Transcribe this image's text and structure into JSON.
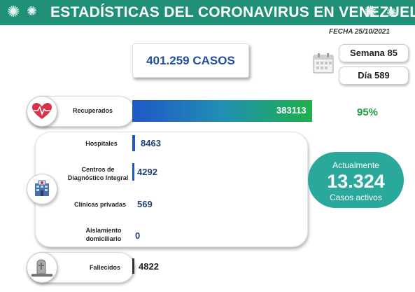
{
  "header": {
    "title": "ESTADÍSTICAS DEL CORONAVIRUS EN VENEZUELA",
    "date": "FECHA 25/10/2021"
  },
  "summary": {
    "cases": "401.259 CASOS",
    "week": "Semana 85",
    "day": "Día 589"
  },
  "recovered": {
    "label": "Recuperados",
    "value": "383113",
    "percent": "95%"
  },
  "breakdown": [
    {
      "label": "Hospitales",
      "value": "8463"
    },
    {
      "label": "Centros de Diagnóstico Integral",
      "value": "4292"
    },
    {
      "label": "Clínicas privadas",
      "value": "569"
    },
    {
      "label": "Aislamiento domiciliario",
      "value": "0"
    }
  ],
  "active": {
    "top": "Actualmente",
    "value": "13.324",
    "bottom": "Casos activos"
  },
  "deaths": {
    "label": "Fallecidos",
    "value": "4822"
  },
  "colors": {
    "banner": "#1f8f78",
    "accent_blue": "#1f57c8",
    "green": "#1fa23a",
    "teal": "#2ba89c"
  },
  "icons": [
    "virus-icon",
    "calendar-icon",
    "heart-icon",
    "hospital-icon",
    "grave-icon"
  ]
}
